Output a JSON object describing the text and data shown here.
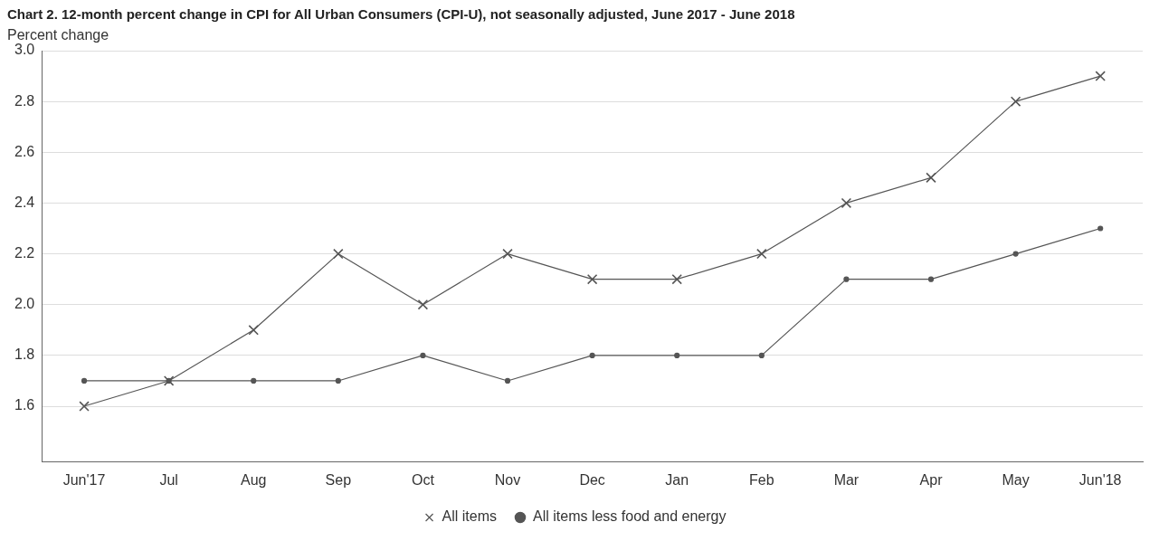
{
  "chart_data": {
    "type": "line",
    "title": "Chart 2. 12-month percent change in CPI for All Urban Consumers (CPI-U), not seasonally adjusted, June 2017 - June 2018",
    "ylabel": "Percent change",
    "categories": [
      "Jun'17",
      "Jul",
      "Aug",
      "Sep",
      "Oct",
      "Nov",
      "Dec",
      "Jan",
      "Feb",
      "Mar",
      "Apr",
      "May",
      "Jun'18"
    ],
    "series": [
      {
        "name": "All items",
        "color": "#555555",
        "marker": "cross",
        "values": [
          1.6,
          1.7,
          1.9,
          2.2,
          2.0,
          2.2,
          2.1,
          2.1,
          2.2,
          2.4,
          2.5,
          2.8,
          2.9
        ]
      },
      {
        "name": "All items less food and energy",
        "color": "#555555",
        "marker": "circle",
        "values": [
          1.7,
          1.7,
          1.7,
          1.7,
          1.8,
          1.7,
          1.8,
          1.8,
          1.8,
          2.1,
          2.1,
          2.2,
          2.3
        ]
      }
    ],
    "ylim": [
      1.38,
      3.0
    ],
    "yticks": [
      1.6,
      1.8,
      {
        "value": 2,
        "label": "2.0"
      },
      2.2,
      2.4,
      2.6,
      2.8,
      {
        "value": 3,
        "label": "3.0"
      }
    ],
    "grid": "y",
    "legend": "bottom",
    "line_style": "solid"
  }
}
